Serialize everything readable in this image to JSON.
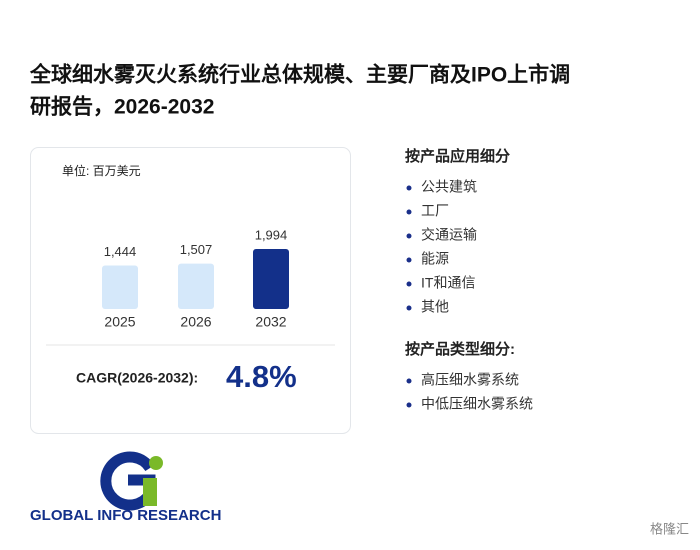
{
  "title": [
    "全球细水雾灭火系统行业总体规模、主要厂商及IPO上市调",
    "研报告，2026-2032"
  ],
  "card": {
    "unit": "单位: 百万美元",
    "cagr_label": "CAGR(2026-2032):",
    "cagr_value": "4.8%"
  },
  "chart_data": {
    "type": "bar",
    "categories": [
      "2025",
      "2026",
      "2032"
    ],
    "values": [
      1444,
      1507,
      1994
    ],
    "value_labels": [
      "1,444",
      "1,507",
      "1,994"
    ],
    "colors": [
      "#d5e8fa",
      "#d5e8fa",
      "#13308a"
    ]
  },
  "segments": [
    {
      "heading": "按产品应用细分",
      "items": [
        "公共建筑",
        "工厂",
        "交通运输",
        "能源",
        "IT和通信",
        "其他"
      ]
    },
    {
      "heading": "按产品类型细分:",
      "items": [
        "高压细水雾系统",
        "中低压细水雾系统"
      ]
    }
  ],
  "logo_text": "GLOBAL INFO RESEARCH",
  "footer": "格隆汇"
}
